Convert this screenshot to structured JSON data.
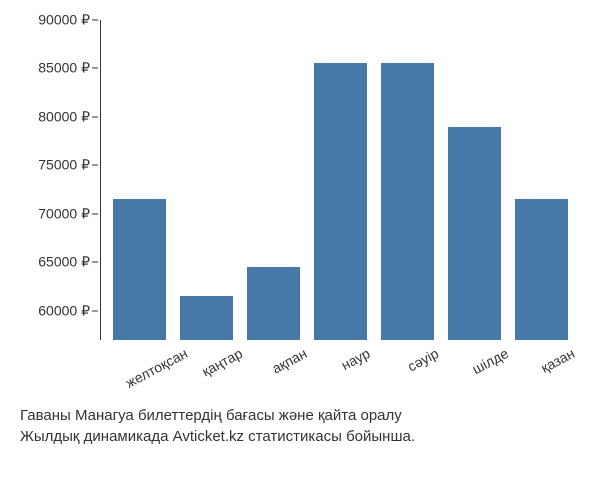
{
  "chart": {
    "type": "bar",
    "y_min": 57000,
    "y_max": 90000,
    "y_ticks": [
      60000,
      65000,
      70000,
      75000,
      80000,
      85000,
      90000
    ],
    "y_tick_labels": [
      "60000 ₽",
      "65000 ₽",
      "70000 ₽",
      "75000 ₽",
      "80000 ₽",
      "85000 ₽",
      "90000 ₽"
    ],
    "categories": [
      "желтоқсан",
      "қаңтар",
      "ақпан",
      "наур",
      "сәуір",
      "шілде",
      "қазан"
    ],
    "values": [
      71500,
      61500,
      64500,
      85600,
      85600,
      79000,
      71500
    ],
    "bar_color": "#4678a8",
    "axis_color": "#333333",
    "label_color": "#333333",
    "background_color": "#ffffff",
    "label_fontsize": 14,
    "x_label_rotation_deg": -28,
    "bar_width_ratio": 0.78
  },
  "caption": {
    "line1": "Гаваны Манагуа билеттердің бағасы және қайта оралу",
    "line2": "Жылдық динамикада Avticket.kz статистикасы бойынша."
  }
}
